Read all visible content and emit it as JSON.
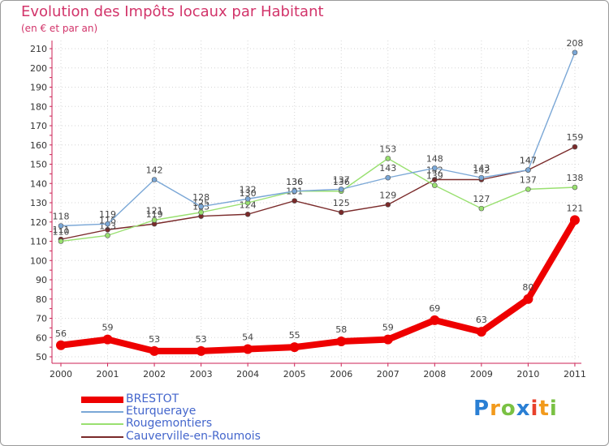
{
  "title": "Evolution des Impôts locaux par Habitant",
  "subtitle": "(en € et par an)",
  "brand": {
    "name": "Proxiti",
    "letters": [
      "P",
      "r",
      "o",
      "x",
      "i",
      "t",
      "i"
    ],
    "letter_colors": [
      "#2a7fd4",
      "#f29a1c",
      "#7ac143",
      "#2a7fd4",
      "#e8412c",
      "#f29a1c",
      "#7ac143"
    ]
  },
  "chart_data": {
    "type": "line",
    "title": "Evolution des Impôts locaux par Habitant",
    "subtitle": "(en € et par an)",
    "x": [
      2000,
      2001,
      2002,
      2003,
      2004,
      2005,
      2006,
      2007,
      2008,
      2009,
      2010,
      2011
    ],
    "ylim": [
      50,
      210
    ],
    "yticks": [
      50,
      60,
      70,
      80,
      90,
      100,
      110,
      120,
      130,
      140,
      150,
      160,
      170,
      180,
      190,
      200,
      210
    ],
    "grid": true,
    "legend_position": "bottom-left",
    "series": [
      {
        "name": "BRESTOT",
        "color": "#ee0000",
        "values": [
          56,
          59,
          53,
          53,
          54,
          55,
          58,
          59,
          69,
          63,
          80,
          121
        ]
      },
      {
        "name": "Eturqueraye",
        "color": "#7aa7d6",
        "values": [
          118,
          119,
          142,
          128,
          132,
          136,
          137,
          143,
          148,
          143,
          147,
          208
        ]
      },
      {
        "name": "Rougemontiers",
        "color": "#99e070",
        "values": [
          110,
          113,
          121,
          125,
          130,
          136,
          136,
          153,
          139,
          127,
          137,
          138
        ]
      },
      {
        "name": "Cauverville-en-Roumois",
        "color": "#7a2a2a",
        "values": [
          111,
          116,
          119,
          123,
          124,
          131,
          125,
          129,
          142,
          142,
          147,
          159
        ]
      }
    ]
  }
}
